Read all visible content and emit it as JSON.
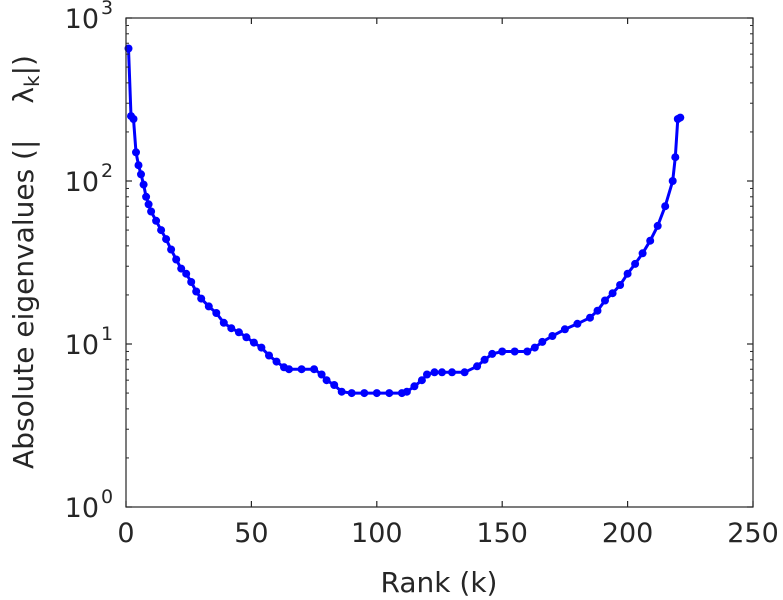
{
  "chart_data": {
    "type": "line",
    "title": "",
    "xlabel": "Rank (k)",
    "ylabel": "Absolute eigenvalues (|λ_k|)",
    "ylabel_prefix": "Absolute eigenvalues (|",
    "ylabel_symbol": "λ",
    "ylabel_subscript": "k",
    "ylabel_suffix": "|)",
    "xlim": [
      0,
      250
    ],
    "ylim": [
      1,
      1000
    ],
    "yscale": "log",
    "grid": false,
    "legend": "none",
    "x_ticks": [
      {
        "value": 0,
        "label": "0"
      },
      {
        "value": 50,
        "label": "50"
      },
      {
        "value": 100,
        "label": "100"
      },
      {
        "value": 150,
        "label": "150"
      },
      {
        "value": 200,
        "label": "200"
      },
      {
        "value": 250,
        "label": "250"
      }
    ],
    "y_ticks": [
      {
        "value": 1,
        "base": "10",
        "exp": "0"
      },
      {
        "value": 10,
        "base": "10",
        "exp": "1"
      },
      {
        "value": 100,
        "base": "10",
        "exp": "2"
      },
      {
        "value": 1000,
        "base": "10",
        "exp": "3"
      }
    ],
    "series": [
      {
        "color": "#0000ff",
        "x": [
          1,
          2,
          3,
          4,
          5,
          6,
          7,
          8,
          9,
          10,
          12,
          14,
          16,
          18,
          20,
          22,
          24,
          26,
          28,
          30,
          33,
          36,
          39,
          42,
          45,
          48,
          51,
          54,
          57,
          60,
          63,
          65,
          70,
          75,
          78,
          80,
          83,
          86,
          90,
          95,
          100,
          105,
          110,
          112,
          115,
          118,
          120,
          123,
          126,
          130,
          135,
          140,
          143,
          146,
          150,
          155,
          160,
          163,
          166,
          170,
          175,
          180,
          185,
          188,
          191,
          194,
          197,
          200,
          203,
          206,
          209,
          212,
          215,
          218,
          219,
          220,
          221
        ],
        "y": [
          650,
          250,
          240,
          150,
          125,
          110,
          95,
          80,
          72,
          65,
          57,
          50,
          44,
          38,
          33,
          29,
          27,
          24,
          21,
          19,
          17,
          15.5,
          13.5,
          12.5,
          11.8,
          11,
          10.2,
          9.5,
          8.5,
          7.8,
          7.2,
          7,
          7,
          7,
          6.5,
          6,
          5.6,
          5.1,
          5,
          5,
          5,
          5,
          5,
          5.1,
          5.5,
          6,
          6.5,
          6.7,
          6.7,
          6.7,
          6.7,
          7.3,
          8,
          8.7,
          9,
          9,
          9,
          9.5,
          10.3,
          11.2,
          12.3,
          13.3,
          14.5,
          16,
          18.5,
          20.5,
          23,
          27,
          31,
          36,
          43,
          53,
          70,
          100,
          140,
          240,
          245
        ]
      }
    ]
  }
}
